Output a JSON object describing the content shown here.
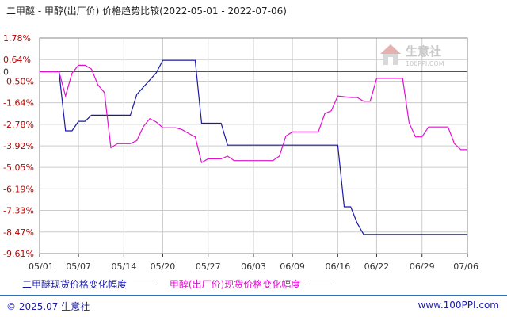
{
  "title": "二甲醚 - 甲醇(出厂价) 价格趋势比较(2022-05-01 - 2022-07-06)",
  "watermark": {
    "text": "生意社",
    "sub": "100PPI.COM"
  },
  "footer": {
    "left": "© 2025.07 生意社",
    "right": "www.100PPI.com"
  },
  "colors": {
    "series1": "#1a1aa6",
    "series2": "#e010d0",
    "grid": "#cccccc",
    "axis": "#333333",
    "tick_label": "#c00000"
  },
  "chart_data": {
    "type": "line",
    "y_ticks": [
      "1.78%",
      "0.64%",
      "-0.50%",
      "-1.64%",
      "-2.78%",
      "-3.92%",
      "-5.05%",
      "-6.19%",
      "-7.33%",
      "-8.47%",
      "-9.61%"
    ],
    "y_tick_values": [
      1.78,
      0.64,
      -0.5,
      -1.64,
      -2.78,
      -3.92,
      -5.05,
      -6.19,
      -7.33,
      -8.47,
      -9.61
    ],
    "zero_label": "0",
    "ylim": [
      -9.61,
      1.78
    ],
    "x_ticks": [
      "05/01",
      "05/07",
      "05/14",
      "05/20",
      "05/27",
      "06/03",
      "06/09",
      "06/16",
      "06/22",
      "06/29",
      "07/06"
    ],
    "x_tick_days": [
      0,
      6,
      13,
      19,
      26,
      33,
      39,
      46,
      52,
      59,
      66
    ],
    "xlim": [
      0,
      66
    ],
    "grid": true,
    "legend_position": "bottom",
    "series": [
      {
        "name": "二甲醚现货价格变化幅度",
        "color": "#1a1aa6",
        "points": [
          [
            0,
            0
          ],
          [
            3,
            0
          ],
          [
            4,
            -3.12
          ],
          [
            5,
            -3.12
          ],
          [
            6,
            -2.62
          ],
          [
            7,
            -2.62
          ],
          [
            8,
            -2.3
          ],
          [
            9,
            -2.3
          ],
          [
            14,
            -2.3
          ],
          [
            15,
            -1.2
          ],
          [
            18,
            -0.06
          ],
          [
            19,
            0.6
          ],
          [
            24,
            0.6
          ],
          [
            25,
            -2.72
          ],
          [
            28,
            -2.72
          ],
          [
            29,
            -3.88
          ],
          [
            30,
            -3.88
          ],
          [
            46,
            -3.88
          ],
          [
            47,
            -7.14
          ],
          [
            48,
            -7.14
          ],
          [
            49,
            -8.0
          ],
          [
            50,
            -8.6
          ],
          [
            66,
            -8.6
          ]
        ]
      },
      {
        "name": "甲醇(出厂价)现货价格变化幅度",
        "color": "#e010d0",
        "points": [
          [
            0,
            0
          ],
          [
            3,
            0
          ],
          [
            4,
            -1.28
          ],
          [
            5,
            -0.08
          ],
          [
            6,
            0.34
          ],
          [
            7,
            0.34
          ],
          [
            8,
            0.14
          ],
          [
            9,
            -0.7
          ],
          [
            10,
            -1.1
          ],
          [
            11,
            -4.02
          ],
          [
            12,
            -3.8
          ],
          [
            14,
            -3.8
          ],
          [
            15,
            -3.64
          ],
          [
            16,
            -2.9
          ],
          [
            17,
            -2.48
          ],
          [
            18,
            -2.66
          ],
          [
            19,
            -2.96
          ],
          [
            21,
            -2.96
          ],
          [
            22,
            -3.06
          ],
          [
            23,
            -3.26
          ],
          [
            24,
            -3.44
          ],
          [
            25,
            -4.8
          ],
          [
            26,
            -4.6
          ],
          [
            28,
            -4.6
          ],
          [
            29,
            -4.46
          ],
          [
            30,
            -4.7
          ],
          [
            36,
            -4.7
          ],
          [
            37,
            -4.46
          ],
          [
            38,
            -3.4
          ],
          [
            39,
            -3.18
          ],
          [
            43,
            -3.18
          ],
          [
            44,
            -2.22
          ],
          [
            45,
            -2.06
          ],
          [
            46,
            -1.28
          ],
          [
            48,
            -1.36
          ],
          [
            49,
            -1.36
          ],
          [
            50,
            -1.56
          ],
          [
            51,
            -1.56
          ],
          [
            52,
            -0.35
          ],
          [
            56,
            -0.35
          ],
          [
            57,
            -2.7
          ],
          [
            58,
            -3.44
          ],
          [
            59,
            -3.44
          ],
          [
            60,
            -2.92
          ],
          [
            63,
            -2.92
          ],
          [
            64,
            -3.8
          ],
          [
            65,
            -4.12
          ],
          [
            66,
            -4.12
          ]
        ]
      }
    ]
  }
}
